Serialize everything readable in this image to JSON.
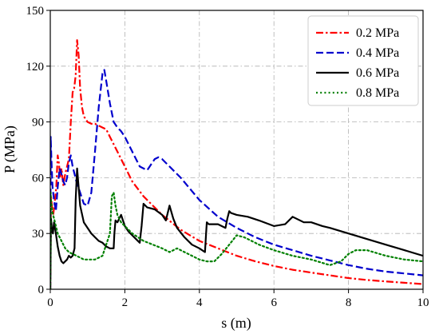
{
  "chart_data": {
    "type": "line",
    "xlabel": "s (m)",
    "ylabel": "P (MPa)",
    "xlim": [
      0,
      10
    ],
    "ylim": [
      0,
      150
    ],
    "xticks": [
      "0",
      "2",
      "4",
      "6",
      "8",
      "10"
    ],
    "yticks": [
      "0",
      "30",
      "60",
      "90",
      "120",
      "150"
    ],
    "grid": true,
    "legend_position": "top-right",
    "series": [
      {
        "name": "0.2 MPa",
        "color": "#ff0000",
        "style": "dashdot",
        "x": [
          0,
          0.02,
          0.05,
          0.08,
          0.12,
          0.16,
          0.2,
          0.23,
          0.27,
          0.3,
          0.35,
          0.4,
          0.45,
          0.5,
          0.55,
          0.6,
          0.64,
          0.68,
          0.72,
          0.76,
          0.8,
          0.85,
          0.9,
          1.0,
          1.1,
          1.2,
          1.3,
          1.4,
          1.5,
          1.6,
          1.7,
          1.8,
          2.0,
          2.2,
          2.5,
          3.0,
          3.5,
          4.0,
          4.5,
          5.0,
          5.5,
          6.0,
          6.5,
          7.0,
          7.5,
          8.0,
          8.5,
          9.0,
          9.5,
          10.0
        ],
        "y": [
          0,
          50,
          44,
          40,
          47,
          55,
          72,
          68,
          60,
          65,
          56,
          62,
          66,
          70,
          90,
          106,
          108,
          115,
          134,
          126,
          108,
          98,
          93,
          90,
          89,
          89,
          88,
          87,
          86,
          82,
          78,
          74,
          66,
          58,
          50,
          40,
          32,
          26,
          22,
          18,
          15,
          12.5,
          10.5,
          9,
          7.5,
          6,
          5,
          4.2,
          3.5,
          2.8
        ]
      },
      {
        "name": "0.4 MPa",
        "color": "#0000cd",
        "style": "dashed",
        "x": [
          0,
          0.01,
          0.03,
          0.06,
          0.1,
          0.15,
          0.2,
          0.25,
          0.3,
          0.35,
          0.4,
          0.45,
          0.5,
          0.55,
          0.6,
          0.65,
          0.7,
          0.8,
          0.9,
          1.0,
          1.1,
          1.2,
          1.3,
          1.4,
          1.45,
          1.5,
          1.6,
          1.7,
          1.8,
          1.9,
          2.0,
          2.2,
          2.4,
          2.6,
          2.8,
          2.9,
          3.0,
          3.2,
          3.5,
          4.0,
          4.5,
          5.0,
          5.5,
          6.0,
          6.5,
          7.0,
          7.5,
          8.0,
          8.5,
          9.0,
          9.5,
          10.0
        ],
        "y": [
          0,
          82,
          70,
          55,
          48,
          42,
          55,
          65,
          62,
          58,
          56,
          60,
          68,
          72,
          66,
          62,
          58,
          52,
          46,
          45,
          52,
          74,
          98,
          116,
          118,
          112,
          100,
          90,
          87,
          85,
          82,
          74,
          66,
          64,
          70,
          71,
          70,
          66,
          60,
          48,
          39,
          33,
          28,
          24,
          21,
          18,
          15.5,
          13,
          11,
          9.5,
          8.5,
          7.5
        ]
      },
      {
        "name": "0.6 MPa",
        "color": "#000000",
        "style": "solid",
        "x": [
          0,
          0.01,
          0.02,
          0.04,
          0.07,
          0.1,
          0.15,
          0.2,
          0.25,
          0.3,
          0.35,
          0.4,
          0.45,
          0.5,
          0.55,
          0.6,
          0.65,
          0.68,
          0.72,
          0.76,
          0.8,
          0.9,
          1.0,
          1.1,
          1.2,
          1.3,
          1.4,
          1.5,
          1.6,
          1.7,
          1.72,
          1.75,
          1.8,
          1.85,
          1.9,
          2.0,
          2.1,
          2.2,
          2.3,
          2.4,
          2.45,
          2.5,
          2.55,
          2.6,
          2.8,
          3.0,
          3.1,
          3.2,
          3.3,
          3.4,
          3.6,
          3.8,
          4.0,
          4.15,
          4.18,
          4.2,
          4.25,
          4.3,
          4.5,
          4.7,
          4.75,
          4.8,
          4.85,
          5.0,
          5.3,
          5.6,
          6.0,
          6.3,
          6.5,
          6.8,
          7.0,
          7.3,
          7.5,
          8.0,
          8.5,
          9.0,
          9.5,
          10.0
        ],
        "y": [
          0,
          22,
          38,
          33,
          30,
          36,
          30,
          23,
          18,
          15,
          14,
          15,
          16,
          18,
          17,
          18,
          22,
          48,
          65,
          55,
          45,
          36,
          33,
          30,
          28,
          26,
          25,
          23,
          22,
          22,
          30,
          37,
          36,
          38,
          40,
          34,
          31,
          29,
          27,
          25,
          34,
          46,
          45,
          44,
          43,
          40,
          37,
          45,
          38,
          33,
          28,
          24,
          22,
          20,
          30,
          36,
          35,
          35,
          35,
          33,
          38,
          42,
          41,
          40,
          39,
          37,
          34,
          35,
          39,
          36,
          36,
          34,
          33,
          30,
          27,
          24,
          21,
          18
        ]
      },
      {
        "name": "0.8 MPa",
        "color": "#008000",
        "style": "dotted",
        "x": [
          0,
          0.01,
          0.02,
          0.05,
          0.1,
          0.15,
          0.2,
          0.3,
          0.4,
          0.5,
          0.6,
          0.7,
          0.8,
          0.9,
          1.0,
          1.2,
          1.4,
          1.6,
          1.65,
          1.7,
          1.75,
          1.8,
          1.9,
          2.0,
          2.2,
          2.5,
          3.0,
          3.2,
          3.4,
          3.6,
          3.8,
          4.0,
          4.2,
          4.4,
          4.6,
          4.8,
          5.0,
          5.2,
          5.4,
          5.6,
          6.0,
          6.5,
          7.0,
          7.5,
          7.8,
          8.0,
          8.2,
          8.5,
          9.0,
          9.5,
          10.0
        ],
        "y": [
          0,
          52,
          48,
          42,
          38,
          34,
          30,
          26,
          22,
          20,
          19,
          18,
          17,
          16,
          16,
          16,
          18,
          30,
          50,
          52,
          45,
          40,
          36,
          34,
          30,
          26,
          22,
          20,
          22,
          20,
          18,
          16,
          15,
          15,
          19,
          24,
          29,
          28,
          26,
          24,
          21,
          18,
          16,
          13,
          15,
          19,
          21,
          21,
          18,
          16,
          15
        ]
      }
    ]
  }
}
